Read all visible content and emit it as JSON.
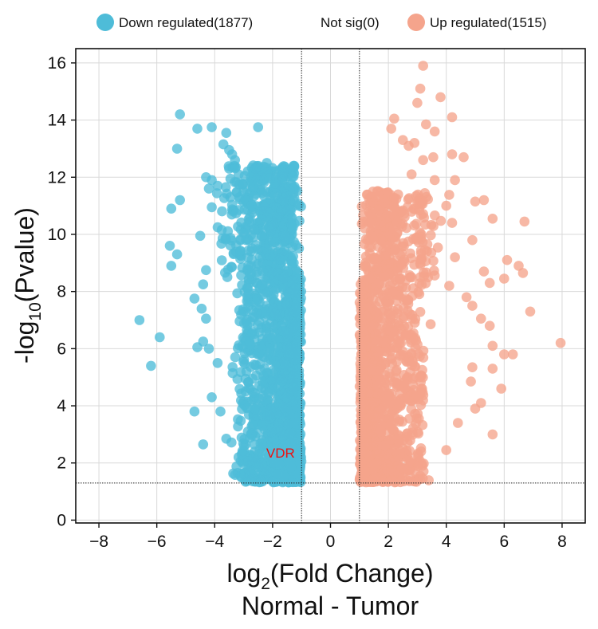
{
  "chart_data": {
    "type": "scatter",
    "x_axis": {
      "label_prefix": "log",
      "label_sub": "2",
      "label_suffix": "(Fold Change)",
      "label_line2": "Normal - Tumor",
      "range": [
        -8.8,
        8.8
      ],
      "ticks": [
        "−8",
        "−6",
        "−4",
        "−2",
        "0",
        "2",
        "4",
        "6",
        "8"
      ]
    },
    "y_axis": {
      "label_prefix": "-log",
      "label_sub": "10",
      "label_suffix": "(Pvalue)",
      "range": [
        -0.1,
        16.5
      ],
      "ticks": [
        "0",
        "2",
        "4",
        "6",
        "8",
        "10",
        "12",
        "14",
        "16"
      ]
    },
    "grid": true,
    "thresholds": {
      "log2fc": [
        -1,
        1
      ],
      "neg_log10_p": 1.3
    },
    "legend": {
      "placement": "top",
      "entries": [
        {
          "label": "Down regulated(1877)",
          "color": "#4ebcd8",
          "count": 1877
        },
        {
          "label": "Not sig(0)",
          "color": "#bdbdbd",
          "count": 0
        },
        {
          "label": "Up regulated(1515)",
          "color": "#f5a48c",
          "count": 1515
        }
      ]
    },
    "annotations": [
      {
        "text": "VDR",
        "x": -2,
        "y": 2.35,
        "color": "#ee1111"
      }
    ],
    "series": [
      {
        "name": "Down regulated(1877)",
        "color": "#4ebcd8",
        "count": 1877,
        "points": [
          [
            -5.2,
            14.2
          ],
          [
            -4.6,
            13.7
          ],
          [
            -4.1,
            13.75
          ],
          [
            -3.6,
            13.55
          ],
          [
            -3.7,
            13.15
          ],
          [
            -2.5,
            13.75
          ],
          [
            -5.3,
            13.0
          ],
          [
            -3.5,
            12.95
          ],
          [
            -2.2,
            12.5
          ],
          [
            -4.3,
            12.0
          ],
          [
            -4.1,
            11.9
          ],
          [
            -3.9,
            11.7
          ],
          [
            -3.3,
            12.6
          ],
          [
            -3.5,
            12.3
          ],
          [
            -5.2,
            11.2
          ],
          [
            -5.5,
            10.9
          ],
          [
            -4.2,
            11.6
          ],
          [
            -4.1,
            10.95
          ],
          [
            -5.55,
            9.6
          ],
          [
            -5.3,
            9.3
          ],
          [
            -5.5,
            8.9
          ],
          [
            -4.3,
            8.75
          ],
          [
            -4.4,
            8.25
          ],
          [
            -4.7,
            7.75
          ],
          [
            -4.45,
            7.4
          ],
          [
            -4.3,
            7.05
          ],
          [
            -6.6,
            7.0
          ],
          [
            -5.9,
            6.4
          ],
          [
            -4.4,
            6.25
          ],
          [
            -4.6,
            6.05
          ],
          [
            -4.2,
            6.0
          ],
          [
            -6.2,
            5.4
          ],
          [
            -4.1,
            4.3
          ],
          [
            -4.7,
            3.8
          ],
          [
            -4.4,
            2.65
          ],
          [
            -3.6,
            2.85
          ],
          [
            -3.9,
            5.5
          ],
          [
            -3.8,
            3.8
          ],
          [
            -4.5,
            9.95
          ],
          [
            -3.4,
            12.8
          ]
        ],
        "dense_region": {
          "x": [
            -3.1,
            -0.95
          ],
          "y": [
            1.3,
            12.4
          ]
        }
      },
      {
        "name": "Up regulated(1515)",
        "color": "#f5a48c",
        "count": 1515,
        "points": [
          [
            3.2,
            15.9
          ],
          [
            3.1,
            15.1
          ],
          [
            3.0,
            14.6
          ],
          [
            3.8,
            14.8
          ],
          [
            2.2,
            14.05
          ],
          [
            4.2,
            14.1
          ],
          [
            2.1,
            13.7
          ],
          [
            3.6,
            13.6
          ],
          [
            2.5,
            13.3
          ],
          [
            3.3,
            13.85
          ],
          [
            2.7,
            13.1
          ],
          [
            3.2,
            12.6
          ],
          [
            4.2,
            12.8
          ],
          [
            4.6,
            12.7
          ],
          [
            2.8,
            12.1
          ],
          [
            3.6,
            11.9
          ],
          [
            4.3,
            11.9
          ],
          [
            5.3,
            11.2
          ],
          [
            5.0,
            11.15
          ],
          [
            4.0,
            11.0
          ],
          [
            4.2,
            10.4
          ],
          [
            5.6,
            10.55
          ],
          [
            6.7,
            10.45
          ],
          [
            4.9,
            9.8
          ],
          [
            6.1,
            9.1
          ],
          [
            6.5,
            8.9
          ],
          [
            6.65,
            8.65
          ],
          [
            5.3,
            8.7
          ],
          [
            5.5,
            8.3
          ],
          [
            6.0,
            8.45
          ],
          [
            4.1,
            8.2
          ],
          [
            4.7,
            7.8
          ],
          [
            4.9,
            7.5
          ],
          [
            5.2,
            7.05
          ],
          [
            6.9,
            7.3
          ],
          [
            5.5,
            6.8
          ],
          [
            5.6,
            6.1
          ],
          [
            6.3,
            5.8
          ],
          [
            6.0,
            5.8
          ],
          [
            7.95,
            6.2
          ],
          [
            5.6,
            5.3
          ],
          [
            4.9,
            5.35
          ],
          [
            5.9,
            4.6
          ],
          [
            5.2,
            4.1
          ],
          [
            5.0,
            3.9
          ],
          [
            5.6,
            3.0
          ],
          [
            4.0,
            2.45
          ],
          [
            4.4,
            3.4
          ],
          [
            4.85,
            4.85
          ],
          [
            4.3,
            9.2
          ],
          [
            3.55,
            12.7
          ],
          [
            2.9,
            13.2
          ]
        ],
        "dense_region": {
          "x": [
            0.95,
            3.2
          ],
          "y": [
            1.3,
            11.5
          ]
        }
      },
      {
        "name": "Not sig(0)",
        "color": "#bdbdbd",
        "count": 0,
        "points": []
      }
    ]
  }
}
